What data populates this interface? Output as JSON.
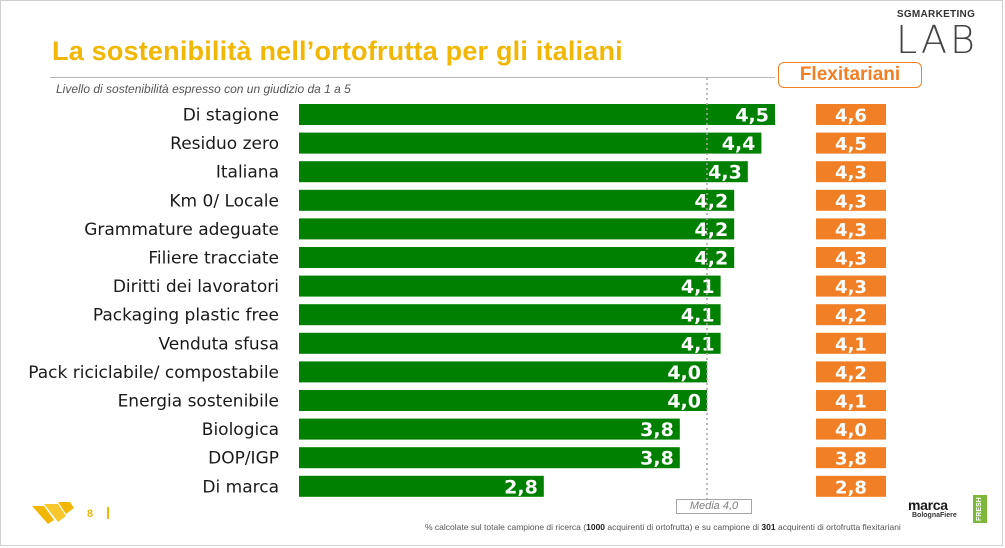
{
  "header": {
    "title": "La sostenibilità nell’ortofrutta per gli italiani",
    "subtitle": "Livello di sostenibilità espresso con un giudizio da 1 a 5",
    "brand_top": "SGMARKETING",
    "brand_main": "LAB"
  },
  "flexitariani_header": "Flexitariani",
  "media_label": "Media 4,0",
  "footer": {
    "page_number": "8",
    "footnote_parts": [
      "% calcolate sul totale campione di ricerca (",
      "1000",
      " acquirenti di ortofrutta) e su campione di ",
      "301",
      " acquirenti di ortofrutta flexitariani"
    ],
    "partner_name": "marca",
    "partner_sub": "BolognaFiere",
    "partner_badge": "FRESH"
  },
  "colors": {
    "title": "#f2b705",
    "bar": "#008000",
    "flex_box": "#f07f26",
    "media_line": "#a6a6a6"
  },
  "chart_data": {
    "type": "bar",
    "orientation": "horizontal",
    "categories": [
      "Di stagione",
      "Residuo zero",
      "Italiana",
      "Km 0/ Locale",
      "Grammature adeguate",
      "Filiere tracciate",
      "Diritti dei lavoratori",
      "Packaging plastic free",
      "Venduta sfusa",
      "Pack riciclabile/ compostabile",
      "Energia sostenibile",
      "Biologica",
      "DOP/IGP",
      "Di marca"
    ],
    "series": [
      {
        "values": [
          4.5,
          4.4,
          4.3,
          4.2,
          4.2,
          4.2,
          4.1,
          4.1,
          4.1,
          4.0,
          4.0,
          3.8,
          3.8,
          2.8
        ],
        "labels": [
          "4,5",
          "4,4",
          "4,3",
          "4,2",
          "4,2",
          "4,2",
          "4,1",
          "4,1",
          "4,1",
          "4,0",
          "4,0",
          "3,8",
          "3,8",
          "2,8"
        ]
      },
      {
        "name": "Flexitariani",
        "values": [
          4.6,
          4.5,
          4.3,
          4.3,
          4.3,
          4.3,
          4.3,
          4.2,
          4.1,
          4.2,
          4.1,
          4.0,
          3.8,
          2.8
        ],
        "labels": [
          "4,6",
          "4,5",
          "4,3",
          "4,3",
          "4,3",
          "4,3",
          "4,3",
          "4,2",
          "4,1",
          "4,2",
          "4,1",
          "4,0",
          "3,8",
          "2,8"
        ]
      }
    ],
    "reference_line": {
      "value": 4.0,
      "label": "Media 4,0"
    },
    "xlim": [
      1,
      5
    ],
    "grid": false,
    "legend": "none"
  }
}
